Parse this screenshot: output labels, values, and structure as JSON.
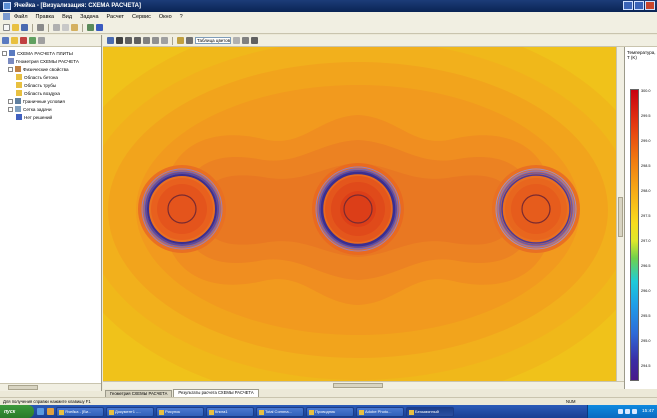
{
  "window": {
    "title": "Ячейка - [Визуализация: СХЕМА РАСЧЕТА]",
    "controls": [
      "minimize",
      "maximize",
      "close"
    ]
  },
  "menubar": {
    "items": [
      "Файл",
      "Правка",
      "Вид",
      "Задача",
      "Расчет",
      "Сервис",
      "Окно",
      "?"
    ]
  },
  "toolbar": {
    "icons": [
      "new-icon",
      "open-icon",
      "save-icon",
      "print-icon",
      "cut-icon",
      "copy-icon",
      "paste-icon",
      "undo-icon",
      "help-icon"
    ]
  },
  "left_panel": {
    "tree": [
      {
        "label": "СХЕМА РАСЧЕТА ПЛИТЫ",
        "level": 0,
        "icon": "folder-icon"
      },
      {
        "label": "Геометрия СХЕМЫ РАСЧЕТА",
        "level": 1,
        "icon": "geometry-icon"
      },
      {
        "label": "Физические свойства",
        "level": 1,
        "icon": "properties-icon"
      },
      {
        "label": "Область бетона",
        "level": 2,
        "icon": "folder-icon"
      },
      {
        "label": "Область трубы",
        "level": 2,
        "icon": "folder-icon"
      },
      {
        "label": "Область воздуха",
        "level": 2,
        "icon": "folder-icon"
      },
      {
        "label": "Граничные условия",
        "level": 1,
        "icon": "boundary-icon"
      },
      {
        "label": "Сетка задачи",
        "level": 1,
        "icon": "mesh-icon"
      },
      {
        "label": "Нет решений",
        "level": 2,
        "icon": "solution-icon"
      }
    ]
  },
  "main_toolbar": {
    "zoom_value": "Таблица цветов ХТ"
  },
  "field": {
    "sources": [
      {
        "name": "pipe-left"
      },
      {
        "name": "pipe-center"
      },
      {
        "name": "pipe-right"
      }
    ]
  },
  "legend": {
    "title": "Температура, T (K)",
    "ticks": [
      "300.0",
      "299.5",
      "299.0",
      "298.5",
      "298.0",
      "297.5",
      "297.0",
      "296.5",
      "296.0",
      "295.5",
      "295.0",
      "294.5"
    ],
    "colors": {
      "hot": "#c80010",
      "mid": "#f8dc1c",
      "cold": "#4a1a8a"
    }
  },
  "tabs": [
    {
      "label": "Геометрия СХЕМЫ РАСЧЕТА",
      "active": false
    },
    {
      "label": "Результаты расчета СХЕМЫ РАСЧЕТА",
      "active": true
    }
  ],
  "statusbar": {
    "text": "Для получения справки нажмите клавишу F1",
    "coords": "NUM"
  },
  "taskbar": {
    "start_label": "пуск",
    "buttons": [
      "Ячейка - [Ви...",
      "Документ1 -...",
      "Рисунок",
      "Книга1",
      "Total Comma...",
      "Проводник",
      "Adobe Photo...",
      "Безымянный"
    ],
    "clock": "15:47"
  }
}
